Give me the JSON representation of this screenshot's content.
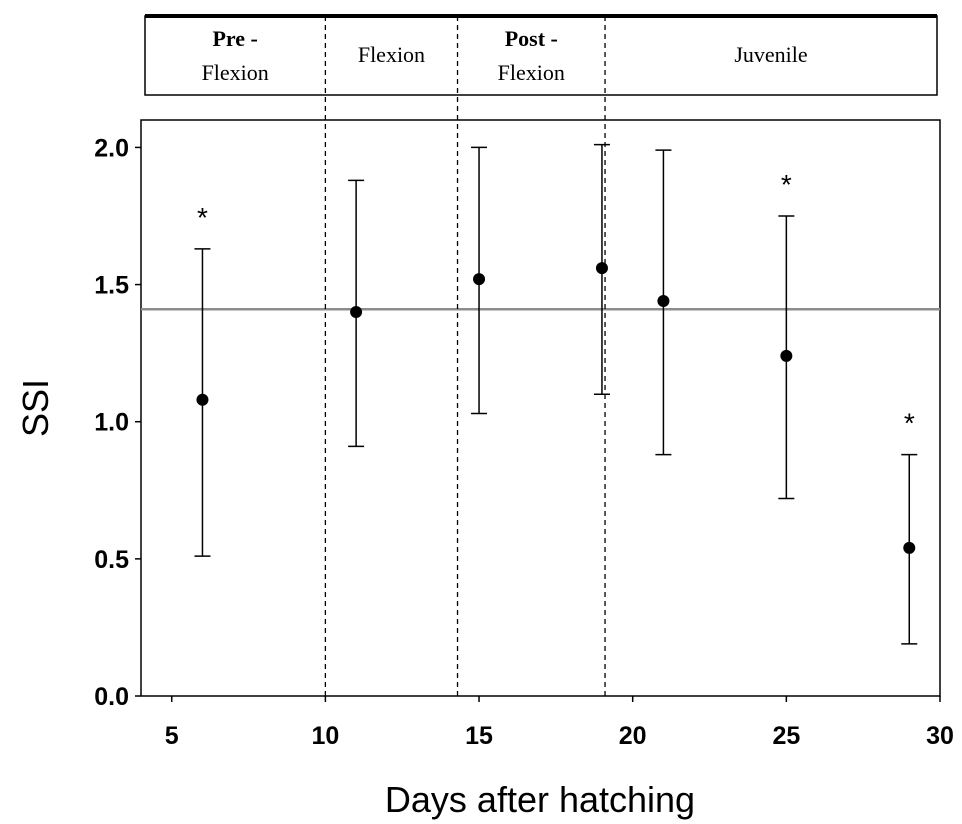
{
  "chart_data": {
    "type": "scatter",
    "title": "",
    "xlabel": "Days after hatching",
    "ylabel": "SSI",
    "xlim": [
      4,
      30
    ],
    "ylim": [
      0,
      2.1
    ],
    "x_ticks": [
      5,
      10,
      15,
      20,
      25,
      30
    ],
    "y_ticks": [
      0.0,
      0.5,
      1.0,
      1.5,
      2.0
    ],
    "x_tick_labels": [
      "5",
      "10",
      "15",
      "20",
      "25",
      "30"
    ],
    "y_tick_labels": [
      "0.0",
      "0.5",
      "1.0",
      "1.5",
      "2.0"
    ],
    "grid": false,
    "reference_line": {
      "y": 1.41,
      "color": "#8c8c8c"
    },
    "stage_boundaries": [
      10,
      14.3,
      19.1
    ],
    "stages": [
      {
        "line1": "Pre -",
        "line2": "Flexion",
        "line1_bold": true,
        "from": 4,
        "to": 10
      },
      {
        "line1": "Flexion",
        "line2": "",
        "line1_bold": false,
        "from": 10,
        "to": 14.3
      },
      {
        "line1": "Post -",
        "line2": "Flexion",
        "line1_bold": true,
        "from": 14.3,
        "to": 19.1
      },
      {
        "line1": "Juvenile",
        "line2": "",
        "line1_bold": false,
        "from": 19.1,
        "to": 30
      }
    ],
    "points": [
      {
        "x": 6,
        "y": 1.08,
        "low": 0.51,
        "high": 1.63,
        "significant": true
      },
      {
        "x": 11,
        "y": 1.4,
        "low": 0.91,
        "high": 1.88,
        "significant": false
      },
      {
        "x": 15,
        "y": 1.52,
        "low": 1.03,
        "high": 2.0,
        "significant": false
      },
      {
        "x": 19,
        "y": 1.56,
        "low": 1.1,
        "high": 2.01,
        "significant": false
      },
      {
        "x": 21,
        "y": 1.44,
        "low": 0.88,
        "high": 1.99,
        "significant": false
      },
      {
        "x": 25,
        "y": 1.24,
        "low": 0.72,
        "high": 1.75,
        "significant": true
      },
      {
        "x": 29,
        "y": 0.54,
        "low": 0.19,
        "high": 0.88,
        "significant": true
      }
    ],
    "significance_symbol": "*"
  }
}
